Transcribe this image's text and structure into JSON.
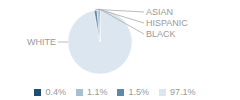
{
  "chart_data": {
    "type": "pie",
    "categories": [
      "WHITE",
      "ASIAN",
      "HISPANIC",
      "BLACK"
    ],
    "values": [
      97.1,
      1.5,
      1.1,
      0.4
    ],
    "value_labels": [
      "97.1%",
      "1.5%",
      "1.1%",
      "0.4%"
    ],
    "colors": [
      "#dce6f0",
      "#5d8aa8",
      "#a8bfcf",
      "#1f4e6e"
    ],
    "legend": "bottom"
  }
}
